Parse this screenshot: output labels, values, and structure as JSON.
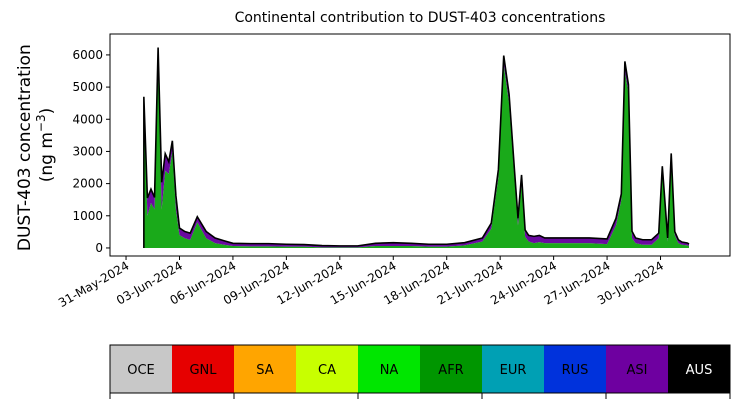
{
  "chart_data": {
    "type": "area",
    "title": "Continental contribution to DUST-403 concentrations",
    "ylabel_line1": "DUST-403 concentration",
    "ylabel_unit_prefix": "(ng m",
    "ylabel_unit_exp": "−3",
    "ylabel_unit_suffix": ")",
    "xlabel": "",
    "ylim": [
      -250,
      6650
    ],
    "xlim_days": [
      -0.9,
      33.9
    ],
    "x_start_date": "31-May-2024",
    "y_ticks": [
      0,
      1000,
      2000,
      3000,
      4000,
      5000,
      6000
    ],
    "y_tick_labels": [
      "0",
      "1000",
      "2000",
      "3000",
      "4000",
      "5000",
      "6000"
    ],
    "x_ticks": [
      0,
      3,
      6,
      9,
      12,
      15,
      18,
      21,
      24,
      27,
      30
    ],
    "x_tick_labels": [
      "31-May-2024",
      "03-Jun-2024",
      "06-Jun-2024",
      "09-Jun-2024",
      "12-Jun-2024",
      "15-Jun-2024",
      "18-Jun-2024",
      "21-Jun-2024",
      "24-Jun-2024",
      "27-Jun-2024",
      "30-Jun-2024"
    ],
    "grid": false,
    "x": [
      1.0,
      1.2,
      1.4,
      1.6,
      1.8,
      2.0,
      2.2,
      2.4,
      2.6,
      2.8,
      3.0,
      3.3,
      3.6,
      4.0,
      4.5,
      5.0,
      5.5,
      6.0,
      7,
      8,
      9,
      10,
      11,
      12,
      13,
      14,
      15,
      16,
      17,
      18,
      19,
      20,
      20.5,
      20.9,
      21.2,
      21.5,
      21.8,
      22.0,
      22.2,
      22.4,
      22.6,
      22.9,
      23.2,
      23.5,
      24,
      25,
      26,
      27,
      27.5,
      27.8,
      28.0,
      28.2,
      28.4,
      28.6,
      29.0,
      29.5,
      29.9,
      30.1,
      30.4,
      30.6,
      30.8,
      31.0,
      31.2,
      31.5,
      31.6
    ],
    "series": [
      {
        "name": "AFR",
        "values": [
          4600,
          1000,
          1400,
          1200,
          5800,
          1200,
          2400,
          2300,
          3000,
          1200,
          400,
          300,
          250,
          800,
          300,
          150,
          100,
          60,
          50,
          50,
          40,
          40,
          20,
          20,
          20,
          60,
          60,
          60,
          40,
          40,
          80,
          200,
          600,
          2200,
          5700,
          4500,
          2200,
          700,
          2000,
          350,
          200,
          150,
          180,
          150,
          150,
          150,
          150,
          120,
          700,
          1500,
          5500,
          4800,
          300,
          150,
          100,
          100,
          300,
          2400,
          200,
          2800,
          400,
          150,
          100,
          80,
          60
        ]
      },
      {
        "name": "ASI",
        "values": [
          0,
          500,
          400,
          350,
          400,
          800,
          500,
          350,
          300,
          400,
          200,
          200,
          200,
          150,
          200,
          150,
          120,
          80,
          80,
          80,
          70,
          60,
          50,
          40,
          40,
          80,
          100,
          80,
          70,
          70,
          80,
          100,
          150,
          200,
          200,
          200,
          200,
          200,
          250,
          200,
          180,
          200,
          200,
          150,
          150,
          150,
          150,
          150,
          200,
          150,
          200,
          200,
          200,
          150,
          150,
          150,
          150,
          100,
          100,
          100,
          100,
          100,
          80,
          70,
          60
        ]
      },
      {
        "name": "RUS",
        "values": [
          100,
          50,
          30,
          20,
          30,
          40,
          30,
          30,
          30,
          20,
          20,
          10,
          10,
          20,
          10,
          10,
          5,
          5,
          5,
          5,
          5,
          5,
          5,
          5,
          5,
          5,
          5,
          5,
          5,
          5,
          5,
          10,
          20,
          40,
          80,
          80,
          40,
          20,
          20,
          10,
          10,
          10,
          10,
          10,
          10,
          10,
          10,
          10,
          20,
          30,
          100,
          80,
          20,
          10,
          5,
          5,
          10,
          40,
          10,
          40,
          10,
          5,
          5,
          5,
          5
        ]
      }
    ],
    "legend": [
      {
        "label": "OCE",
        "color": "#c8c8c8",
        "text_color": "#000000"
      },
      {
        "label": "GNL",
        "color": "#e60000",
        "text_color": "#000000"
      },
      {
        "label": "SA",
        "color": "#ffa500",
        "text_color": "#000000"
      },
      {
        "label": "CA",
        "color": "#c8ff00",
        "text_color": "#000000"
      },
      {
        "label": "NA",
        "color": "#00e600",
        "text_color": "#000000"
      },
      {
        "label": "AFR",
        "color": "#009600",
        "text_color": "#000000"
      },
      {
        "label": "EUR",
        "color": "#00a0b4",
        "text_color": "#000000"
      },
      {
        "label": "RUS",
        "color": "#0032dc",
        "text_color": "#000000"
      },
      {
        "label": "ASI",
        "color": "#6e00a0",
        "text_color": "#000000"
      },
      {
        "label": "AUS",
        "color": "#000000",
        "text_color": "#ffffff"
      }
    ],
    "legend_placement": "bottom",
    "colors": {
      "AFR": "#1aaa1a",
      "ASI": "#6a0aa0",
      "RUS": "#1b2aa0",
      "outline": "#000000"
    }
  }
}
